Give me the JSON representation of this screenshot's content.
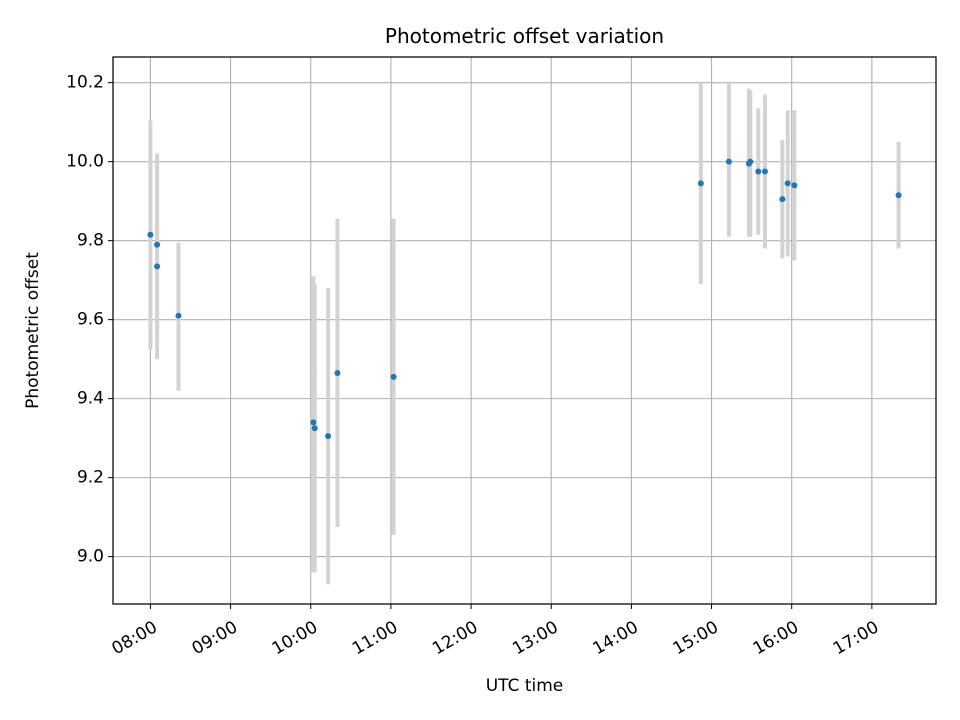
{
  "chart_data": {
    "type": "scatter",
    "title": "Photometric offset variation",
    "xlabel": "UTC time",
    "ylabel": "Photometric offset",
    "xlim": [
      "07:32",
      "17:48"
    ],
    "ylim": [
      8.88,
      10.265
    ],
    "grid": true,
    "x_ticks": [
      "08:00",
      "09:00",
      "10:00",
      "11:00",
      "12:00",
      "13:00",
      "14:00",
      "15:00",
      "16:00",
      "17:00"
    ],
    "y_ticks": [
      9.0,
      9.2,
      9.4,
      9.6,
      9.8,
      10.0,
      10.2
    ],
    "marker_color": "#1f77b4",
    "errorbar_color": "#d3d3d3",
    "points": [
      {
        "time": "08:00",
        "y": 9.815,
        "yerr_low": 9.525,
        "yerr_high": 10.105
      },
      {
        "time": "08:05",
        "y": 9.79,
        "yerr_low": 9.56,
        "yerr_high": 10.02
      },
      {
        "time": "08:05",
        "y": 9.735,
        "yerr_low": 9.5,
        "yerr_high": 9.97
      },
      {
        "time": "08:21",
        "y": 9.61,
        "yerr_low": 9.42,
        "yerr_high": 9.795
      },
      {
        "time": "10:02",
        "y": 9.34,
        "yerr_low": 8.96,
        "yerr_high": 9.71
      },
      {
        "time": "10:03",
        "y": 9.325,
        "yerr_low": 8.96,
        "yerr_high": 9.69
      },
      {
        "time": "10:13",
        "y": 9.305,
        "yerr_low": 8.93,
        "yerr_high": 9.68
      },
      {
        "time": "10:20",
        "y": 9.465,
        "yerr_low": 9.075,
        "yerr_high": 9.855
      },
      {
        "time": "11:02",
        "y": 9.455,
        "yerr_low": 9.055,
        "yerr_high": 9.855
      },
      {
        "time": "14:52",
        "y": 9.945,
        "yerr_low": 9.69,
        "yerr_high": 10.2
      },
      {
        "time": "15:13",
        "y": 10.0,
        "yerr_low": 9.81,
        "yerr_high": 10.2
      },
      {
        "time": "15:28",
        "y": 9.995,
        "yerr_low": 9.81,
        "yerr_high": 10.185
      },
      {
        "time": "15:29",
        "y": 10.0,
        "yerr_low": 9.81,
        "yerr_high": 10.18
      },
      {
        "time": "15:35",
        "y": 9.975,
        "yerr_low": 9.815,
        "yerr_high": 10.135
      },
      {
        "time": "15:40",
        "y": 9.975,
        "yerr_low": 9.78,
        "yerr_high": 10.17
      },
      {
        "time": "15:53",
        "y": 9.905,
        "yerr_low": 9.755,
        "yerr_high": 10.055
      },
      {
        "time": "15:57",
        "y": 9.945,
        "yerr_low": 9.76,
        "yerr_high": 10.13
      },
      {
        "time": "16:02",
        "y": 9.94,
        "yerr_low": 9.75,
        "yerr_high": 10.13
      },
      {
        "time": "17:20",
        "y": 9.915,
        "yerr_low": 9.78,
        "yerr_high": 10.05
      }
    ]
  }
}
